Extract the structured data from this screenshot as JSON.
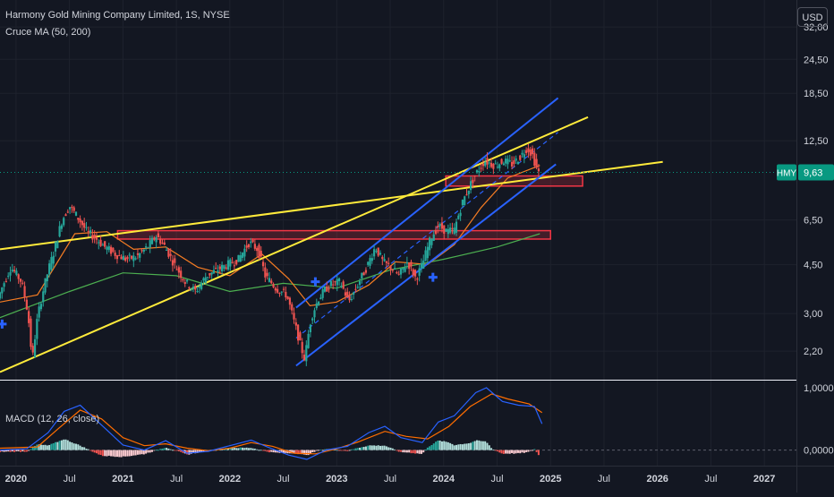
{
  "header": {
    "title": "Harmony Gold Mining Company Limited, 1S, NYSE",
    "indicator": "Cruce MA (50, 200)",
    "currency": "USD"
  },
  "colors": {
    "background": "#131722",
    "text": "#d1d4dc",
    "grid": "#1e222d",
    "candle_up": "#26a69a",
    "candle_down": "#ef5350",
    "ma50": "#f57c23",
    "ma200": "#4caf50",
    "trendline_yellow": "#ffeb3b",
    "channel_blue": "#2962ff",
    "zone": "#f23645",
    "macd_line": "#2962ff",
    "signal_line": "#ff6d00",
    "last_price_badge": "#089981"
  },
  "chart_data": [
    {
      "type": "candlestick",
      "yscale": "log",
      "ylim": [
        1.75,
        40
      ],
      "xlim": [
        2019.85,
        2027.3
      ],
      "y_ticks": [
        {
          "v": 32,
          "label": "32,00"
        },
        {
          "v": 24.5,
          "label": "24,50"
        },
        {
          "v": 18.5,
          "label": "18,50"
        },
        {
          "v": 12.5,
          "label": "12,50"
        },
        {
          "v": 6.5,
          "label": "6,50"
        },
        {
          "v": 4.5,
          "label": "4,50"
        },
        {
          "v": 3.0,
          "label": "3,00"
        },
        {
          "v": 2.2,
          "label": "2,20"
        }
      ],
      "x_ticks": [
        {
          "t": 2020.0,
          "label": "2020"
        },
        {
          "t": 2020.5,
          "label": "Jul"
        },
        {
          "t": 2021.0,
          "label": "2021"
        },
        {
          "t": 2021.5,
          "label": "Jul"
        },
        {
          "t": 2022.0,
          "label": "2022"
        },
        {
          "t": 2022.5,
          "label": "Jul"
        },
        {
          "t": 2023.0,
          "label": "2023"
        },
        {
          "t": 2023.5,
          "label": "Jul"
        },
        {
          "t": 2024.0,
          "label": "2024"
        },
        {
          "t": 2024.5,
          "label": "Jul"
        },
        {
          "t": 2025.0,
          "label": "2025"
        },
        {
          "t": 2025.5,
          "label": "Jul"
        },
        {
          "t": 2026.0,
          "label": "2026"
        },
        {
          "t": 2026.5,
          "label": "Jul"
        },
        {
          "t": 2027.0,
          "label": "2027"
        }
      ],
      "last_price": {
        "symbol": "HMY",
        "value": 9.63,
        "label": "9,63"
      },
      "price_path": [
        [
          2019.85,
          3.4
        ],
        [
          2019.97,
          4.4
        ],
        [
          2020.07,
          3.9
        ],
        [
          2020.13,
          3.0
        ],
        [
          2020.17,
          2.0
        ],
        [
          2020.22,
          2.9
        ],
        [
          2020.3,
          4.0
        ],
        [
          2020.38,
          5.1
        ],
        [
          2020.45,
          6.5
        ],
        [
          2020.52,
          7.3
        ],
        [
          2020.6,
          6.6
        ],
        [
          2020.68,
          5.9
        ],
        [
          2020.76,
          5.6
        ],
        [
          2020.85,
          5.2
        ],
        [
          2020.95,
          4.9
        ],
        [
          2021.05,
          4.7
        ],
        [
          2021.15,
          4.8
        ],
        [
          2021.25,
          5.2
        ],
        [
          2021.33,
          5.7
        ],
        [
          2021.4,
          5.3
        ],
        [
          2021.5,
          4.5
        ],
        [
          2021.6,
          3.9
        ],
        [
          2021.7,
          3.6
        ],
        [
          2021.8,
          4.1
        ],
        [
          2021.9,
          4.3
        ],
        [
          2022.0,
          4.5
        ],
        [
          2022.1,
          4.7
        ],
        [
          2022.2,
          5.4
        ],
        [
          2022.28,
          5.1
        ],
        [
          2022.35,
          4.1
        ],
        [
          2022.45,
          3.7
        ],
        [
          2022.55,
          3.5
        ],
        [
          2022.62,
          2.8
        ],
        [
          2022.68,
          2.3
        ],
        [
          2022.72,
          2.05
        ],
        [
          2022.78,
          2.9
        ],
        [
          2022.85,
          3.4
        ],
        [
          2022.95,
          3.8
        ],
        [
          2023.05,
          3.9
        ],
        [
          2023.13,
          3.3
        ],
        [
          2023.2,
          3.7
        ],
        [
          2023.3,
          4.4
        ],
        [
          2023.38,
          5.2
        ],
        [
          2023.45,
          4.6
        ],
        [
          2023.52,
          4.4
        ],
        [
          2023.6,
          4.1
        ],
        [
          2023.68,
          4.6
        ],
        [
          2023.76,
          4.0
        ],
        [
          2023.82,
          4.5
        ],
        [
          2023.9,
          5.6
        ],
        [
          2023.97,
          6.2
        ],
        [
          2024.05,
          5.9
        ],
        [
          2024.12,
          6.0
        ],
        [
          2024.2,
          7.6
        ],
        [
          2024.3,
          9.2
        ],
        [
          2024.4,
          10.6
        ],
        [
          2024.5,
          10.2
        ],
        [
          2024.58,
          10.6
        ],
        [
          2024.66,
          10.3
        ],
        [
          2024.74,
          11.0
        ],
        [
          2024.8,
          11.8
        ],
        [
          2024.85,
          11.1
        ],
        [
          2024.9,
          9.63
        ]
      ],
      "ma50_path": [
        [
          2019.85,
          3.3
        ],
        [
          2020.2,
          3.5
        ],
        [
          2020.55,
          5.8
        ],
        [
          2020.85,
          5.9
        ],
        [
          2021.1,
          5.1
        ],
        [
          2021.4,
          5.2
        ],
        [
          2021.7,
          4.4
        ],
        [
          2022.0,
          4.1
        ],
        [
          2022.3,
          4.9
        ],
        [
          2022.55,
          4.0
        ],
        [
          2022.75,
          3.2
        ],
        [
          2023.0,
          3.3
        ],
        [
          2023.3,
          3.8
        ],
        [
          2023.55,
          4.6
        ],
        [
          2023.85,
          4.5
        ],
        [
          2024.1,
          5.3
        ],
        [
          2024.35,
          7.2
        ],
        [
          2024.6,
          9.2
        ],
        [
          2024.9,
          10.2
        ]
      ],
      "ma200_path": [
        [
          2019.85,
          2.9
        ],
        [
          2020.5,
          3.6
        ],
        [
          2021.0,
          4.2
        ],
        [
          2021.5,
          4.1
        ],
        [
          2022.0,
          3.6
        ],
        [
          2022.5,
          3.85
        ],
        [
          2023.0,
          3.7
        ],
        [
          2023.5,
          4.3
        ],
        [
          2024.0,
          4.7
        ],
        [
          2024.5,
          5.2
        ],
        [
          2024.9,
          5.8
        ]
      ],
      "trendlines_yellow": [
        [
          [
            2019.85,
            5.1
          ],
          [
            2026.05,
            10.5
          ]
        ],
        [
          [
            2019.85,
            1.85
          ],
          [
            2025.35,
            15.2
          ]
        ]
      ],
      "channel_blue": [
        [
          [
            2022.62,
            1.95
          ],
          [
            2025.05,
            10.3
          ]
        ],
        [
          [
            2022.62,
            3.15
          ],
          [
            2025.07,
            17.8
          ]
        ]
      ],
      "channel_mid_dashed": [
        [
          2022.62,
          2.45
        ],
        [
          2025.07,
          13.4
        ]
      ],
      "zones": [
        {
          "t0": 2020.95,
          "t1": 2025.0,
          "y0": 5.55,
          "y1": 5.95
        },
        {
          "t0": 2024.02,
          "t1": 2025.3,
          "y0": 8.6,
          "y1": 9.35
        }
      ],
      "crossovers": [
        [
          2019.87,
          2.75
        ],
        [
          2022.8,
          3.9
        ],
        [
          2023.9,
          4.05
        ]
      ]
    },
    {
      "type": "macd",
      "label": "MACD (12, 26, close)",
      "ylim": [
        -0.25,
        1.1
      ],
      "y_ticks": [
        {
          "v": 1.0,
          "label": "1,0000"
        },
        {
          "v": 0.0,
          "label": "0,0000"
        }
      ],
      "macd_line": [
        [
          2019.85,
          0.0
        ],
        [
          2020.1,
          0.02
        ],
        [
          2020.3,
          0.28
        ],
        [
          2020.45,
          0.62
        ],
        [
          2020.6,
          0.72
        ],
        [
          2020.8,
          0.4
        ],
        [
          2021.0,
          0.08
        ],
        [
          2021.2,
          0.0
        ],
        [
          2021.4,
          0.15
        ],
        [
          2021.6,
          -0.05
        ],
        [
          2021.8,
          -0.02
        ],
        [
          2022.0,
          0.07
        ],
        [
          2022.2,
          0.16
        ],
        [
          2022.35,
          0.05
        ],
        [
          2022.55,
          -0.08
        ],
        [
          2022.72,
          -0.15
        ],
        [
          2022.9,
          0.0
        ],
        [
          2023.1,
          0.06
        ],
        [
          2023.3,
          0.28
        ],
        [
          2023.45,
          0.38
        ],
        [
          2023.6,
          0.2
        ],
        [
          2023.8,
          0.12
        ],
        [
          2023.95,
          0.45
        ],
        [
          2024.1,
          0.55
        ],
        [
          2024.3,
          0.92
        ],
        [
          2024.4,
          1.0
        ],
        [
          2024.55,
          0.78
        ],
        [
          2024.7,
          0.72
        ],
        [
          2024.85,
          0.7
        ],
        [
          2024.92,
          0.42
        ]
      ],
      "signal_line": [
        [
          2019.85,
          0.03
        ],
        [
          2020.2,
          0.05
        ],
        [
          2020.4,
          0.35
        ],
        [
          2020.6,
          0.64
        ],
        [
          2020.8,
          0.5
        ],
        [
          2021.0,
          0.2
        ],
        [
          2021.2,
          0.07
        ],
        [
          2021.4,
          0.1
        ],
        [
          2021.6,
          0.03
        ],
        [
          2021.8,
          -0.01
        ],
        [
          2022.0,
          0.03
        ],
        [
          2022.2,
          0.12
        ],
        [
          2022.4,
          0.06
        ],
        [
          2022.6,
          -0.05
        ],
        [
          2022.8,
          -0.06
        ],
        [
          2023.0,
          0.02
        ],
        [
          2023.2,
          0.13
        ],
        [
          2023.45,
          0.3
        ],
        [
          2023.65,
          0.22
        ],
        [
          2023.85,
          0.18
        ],
        [
          2024.05,
          0.38
        ],
        [
          2024.25,
          0.7
        ],
        [
          2024.45,
          0.9
        ],
        [
          2024.6,
          0.82
        ],
        [
          2024.8,
          0.74
        ],
        [
          2024.92,
          0.6
        ]
      ]
    }
  ]
}
